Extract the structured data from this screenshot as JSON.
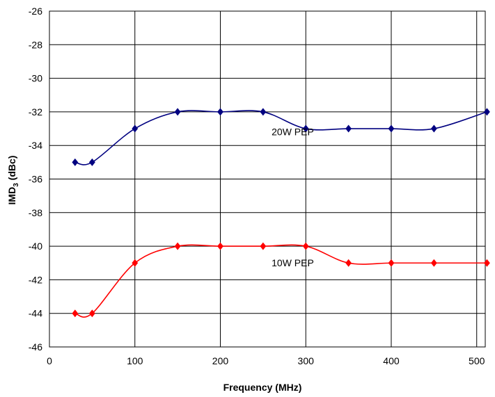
{
  "chart_data": {
    "type": "line",
    "title": "",
    "xlabel": "Frequency (MHz)",
    "ylabel": "IMD",
    "ylabel_sub": "3",
    "ylabel_tail": " (dBc)",
    "xlim": [
      0,
      510
    ],
    "ylim": [
      -46,
      -26
    ],
    "xticks": [
      0,
      100,
      200,
      300,
      400,
      500
    ],
    "yticks": [
      -26,
      -28,
      -30,
      -32,
      -34,
      -36,
      -38,
      -40,
      -42,
      -44,
      -46
    ],
    "grid": true,
    "series": [
      {
        "name": "20W PEP",
        "color": "#000080",
        "x": [
          30,
          50,
          100,
          150,
          200,
          250,
          300,
          350,
          400,
          450,
          512
        ],
        "y": [
          -35,
          -35,
          -33,
          -32,
          -32,
          -32,
          -33,
          -33,
          -33,
          -33,
          -32
        ]
      },
      {
        "name": "10W PEP",
        "color": "#ff0000",
        "x": [
          30,
          50,
          100,
          150,
          200,
          250,
          300,
          350,
          400,
          450,
          512
        ],
        "y": [
          -44,
          -44,
          -41,
          -40,
          -40,
          -40,
          -40,
          -41,
          -41,
          -41,
          -41
        ]
      }
    ]
  }
}
